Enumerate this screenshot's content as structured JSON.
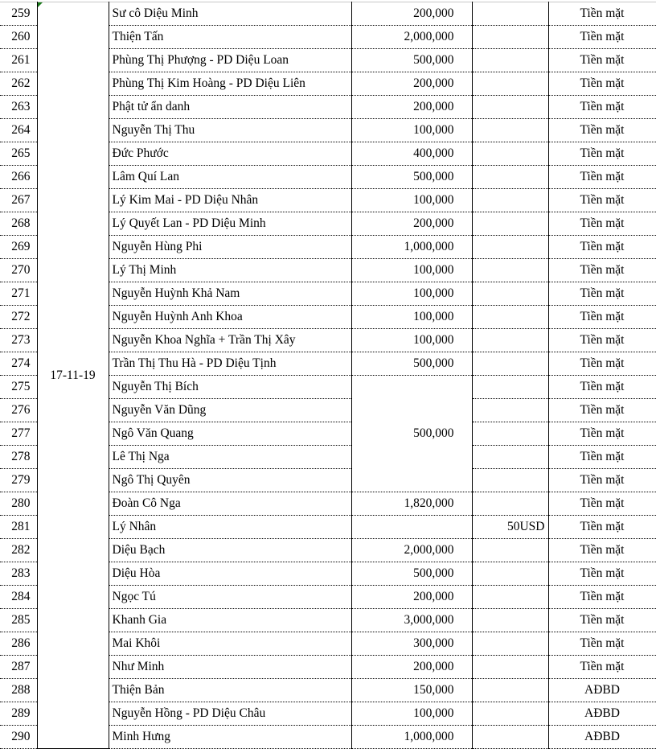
{
  "date": "17-11-19",
  "merged_amount": {
    "start": "275",
    "end": "279",
    "value": "500,000"
  },
  "rows": [
    {
      "no": "259",
      "name": "Sư cô Diệu Minh",
      "amount": "200,000",
      "usd": "",
      "method": "Tiền mặt"
    },
    {
      "no": "260",
      "name": "Thiện Tấn",
      "amount": "2,000,000",
      "usd": "",
      "method": "Tiền mặt"
    },
    {
      "no": "261",
      "name": "Phùng Thị Phượng - PD Diệu Loan",
      "amount": "500,000",
      "usd": "",
      "method": "Tiền mặt"
    },
    {
      "no": "262",
      "name": "Phùng Thị Kim Hoàng - PD Diệu Liên",
      "amount": "200,000",
      "usd": "",
      "method": "Tiền mặt"
    },
    {
      "no": "263",
      "name": "Phật tử ẩn danh",
      "amount": "200,000",
      "usd": "",
      "method": "Tiền mặt"
    },
    {
      "no": "264",
      "name": "Nguyễn Thị Thu",
      "amount": "100,000",
      "usd": "",
      "method": "Tiền mặt"
    },
    {
      "no": "265",
      "name": "Đức Phước",
      "amount": "400,000",
      "usd": "",
      "method": "Tiền mặt"
    },
    {
      "no": "266",
      "name": "Lâm Quí Lan",
      "amount": "500,000",
      "usd": "",
      "method": "Tiền mặt"
    },
    {
      "no": "267",
      "name": "Lý Kim Mai - PD Diệu Nhân",
      "amount": "100,000",
      "usd": "",
      "method": "Tiền mặt"
    },
    {
      "no": "268",
      "name": "Lý Quyết Lan - PD Diệu Minh",
      "amount": "200,000",
      "usd": "",
      "method": "Tiền mặt"
    },
    {
      "no": "269",
      "name": "Nguyễn Hùng Phi",
      "amount": "1,000,000",
      "usd": "",
      "method": "Tiền mặt"
    },
    {
      "no": "270",
      "name": "Lý Thị Minh",
      "amount": "100,000",
      "usd": "",
      "method": "Tiền mặt"
    },
    {
      "no": "271",
      "name": "Nguyễn Huỳnh Khả Nam",
      "amount": "100,000",
      "usd": "",
      "method": "Tiền mặt"
    },
    {
      "no": "272",
      "name": "Nguyễn Huỳnh Anh Khoa",
      "amount": "100,000",
      "usd": "",
      "method": "Tiền mặt"
    },
    {
      "no": "273",
      "name": "Nguyễn Khoa Nghĩa + Trần Thị Xây",
      "amount": "100,000",
      "usd": "",
      "method": "Tiền mặt"
    },
    {
      "no": "274",
      "name": "Trần Thị Thu Hà - PD Diệu Tịnh",
      "amount": "500,000",
      "usd": "",
      "method": "Tiền mặt"
    },
    {
      "no": "275",
      "name": "Nguyễn Thị Bích",
      "amount": "",
      "usd": "",
      "method": "Tiền mặt"
    },
    {
      "no": "276",
      "name": "Nguyễn Văn Dũng",
      "amount": "",
      "usd": "",
      "method": "Tiền mặt"
    },
    {
      "no": "277",
      "name": "Ngô Văn Quang",
      "amount": "",
      "usd": "",
      "method": "Tiền mặt"
    },
    {
      "no": "278",
      "name": "Lê Thị Nga",
      "amount": "",
      "usd": "",
      "method": "Tiền mặt"
    },
    {
      "no": "279",
      "name": "Ngô Thị Quyên",
      "amount": "",
      "usd": "",
      "method": "Tiền mặt"
    },
    {
      "no": "280",
      "name": "Đoàn Cô Nga",
      "amount": "1,820,000",
      "usd": "",
      "method": "Tiền mặt"
    },
    {
      "no": "281",
      "name": "Lý Nhân",
      "amount": "",
      "usd": "50USD",
      "method": "Tiền mặt"
    },
    {
      "no": "282",
      "name": "Diệu Bạch",
      "amount": "2,000,000",
      "usd": "",
      "method": "Tiền mặt"
    },
    {
      "no": "283",
      "name": "Diệu Hòa",
      "amount": "500,000",
      "usd": "",
      "method": "Tiền mặt"
    },
    {
      "no": "284",
      "name": "Ngọc Tú",
      "amount": "200,000",
      "usd": "",
      "method": "Tiền mặt"
    },
    {
      "no": "285",
      "name": "Khanh Gia",
      "amount": "3,000,000",
      "usd": "",
      "method": "Tiền mặt"
    },
    {
      "no": "286",
      "name": "Mai Khôi",
      "amount": "300,000",
      "usd": "",
      "method": "Tiền mặt"
    },
    {
      "no": "287",
      "name": "Như Minh",
      "amount": "200,000",
      "usd": "",
      "method": "Tiền mặt"
    },
    {
      "no": "288",
      "name": "Thiện Bản",
      "amount": "150,000",
      "usd": "",
      "method": "AĐBD"
    },
    {
      "no": "289",
      "name": "Nguyễn Hồng - PD Diệu Châu",
      "amount": "100,000",
      "usd": "",
      "method": "AĐBD"
    },
    {
      "no": "290",
      "name": "Minh Hưng",
      "amount": "1,000,000",
      "usd": "",
      "method": "AĐBD"
    }
  ]
}
